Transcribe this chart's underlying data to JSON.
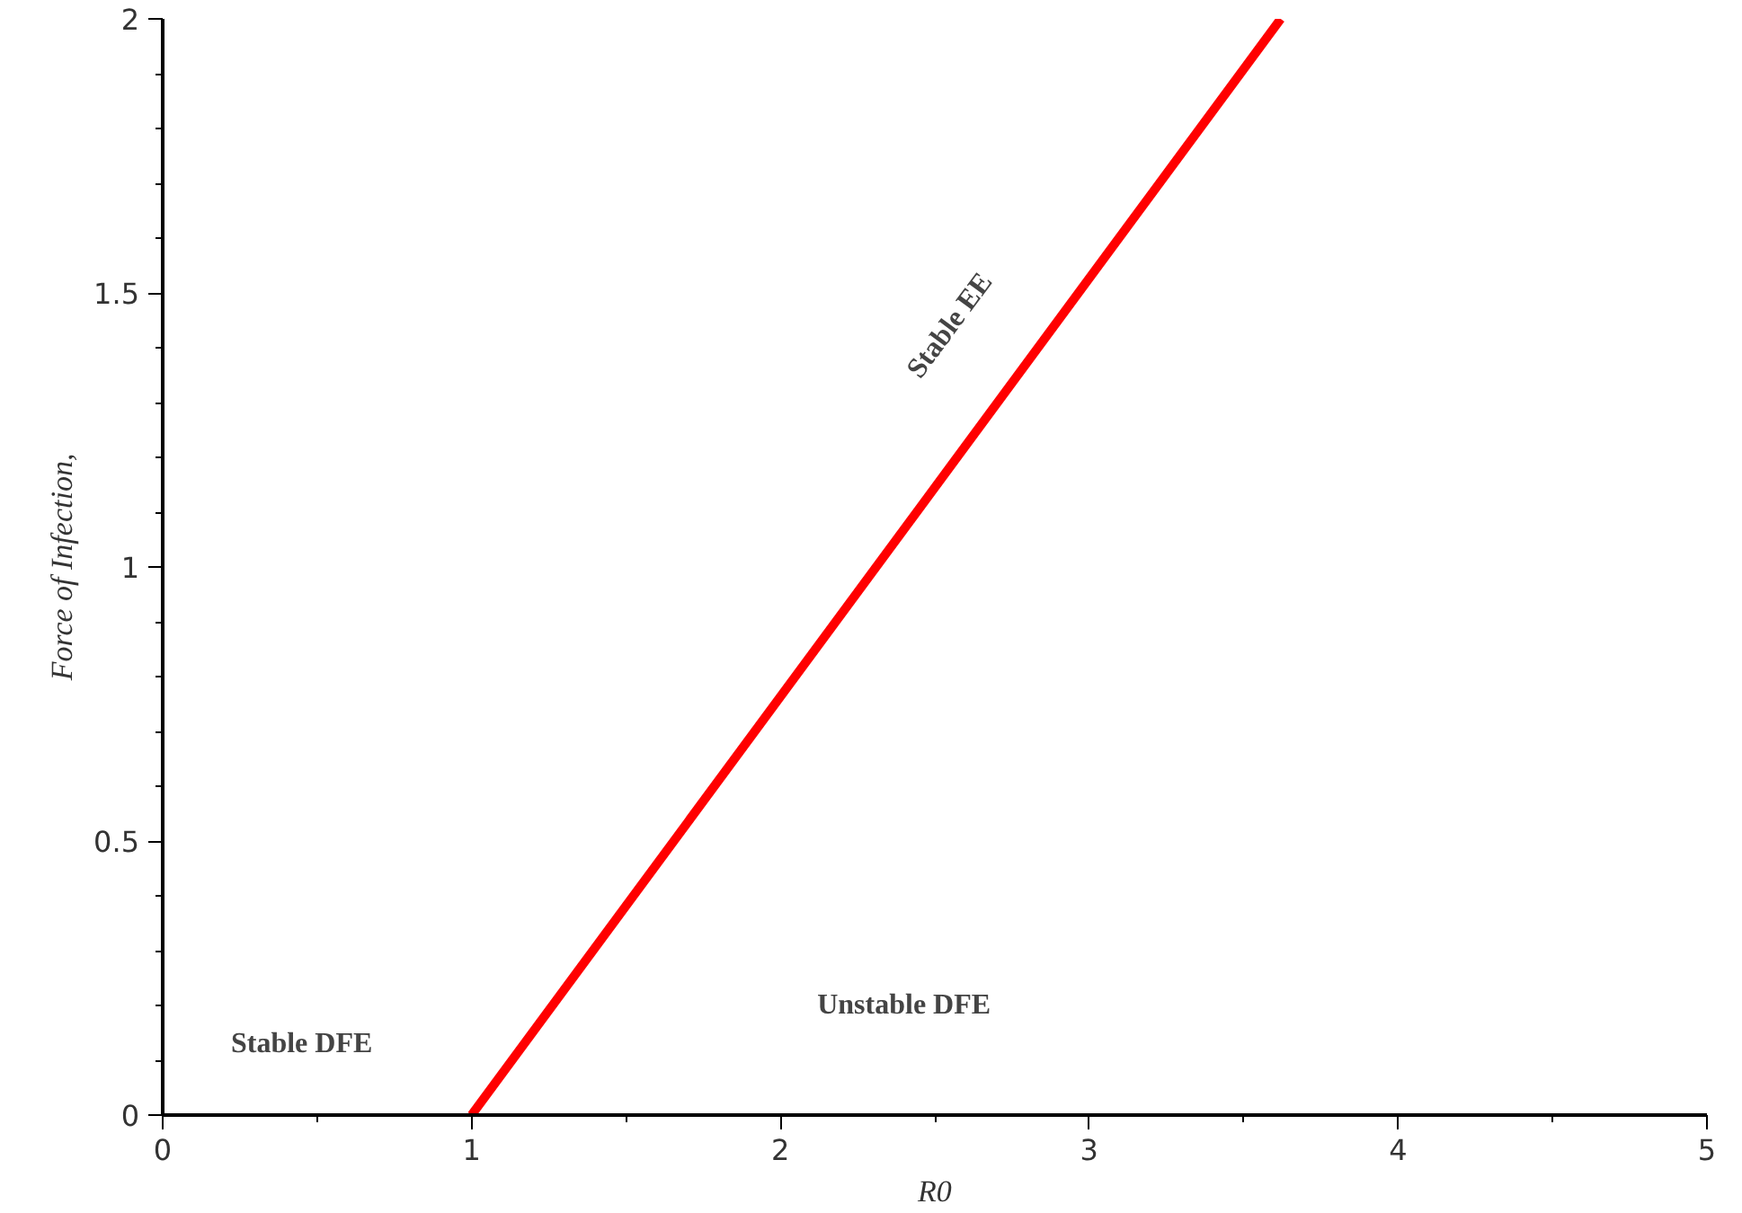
{
  "chart_data": {
    "type": "line",
    "xlabel": "R0",
    "ylabel": "Force of Infection,",
    "x": [
      1,
      3.62
    ],
    "series": [
      {
        "color": "#ff0000",
        "values": [
          0,
          2
        ]
      }
    ],
    "xlim": [
      0,
      5
    ],
    "ylim": [
      0,
      2
    ],
    "xticks": [
      0,
      1,
      2,
      3,
      4,
      5
    ],
    "yticks": [
      0,
      0.5,
      1,
      1.5,
      2
    ],
    "grid": false,
    "marker": "none",
    "line_style": "solid",
    "annotations": [
      "Stable EE",
      "Stable DFE",
      "Unstable DFE"
    ]
  }
}
